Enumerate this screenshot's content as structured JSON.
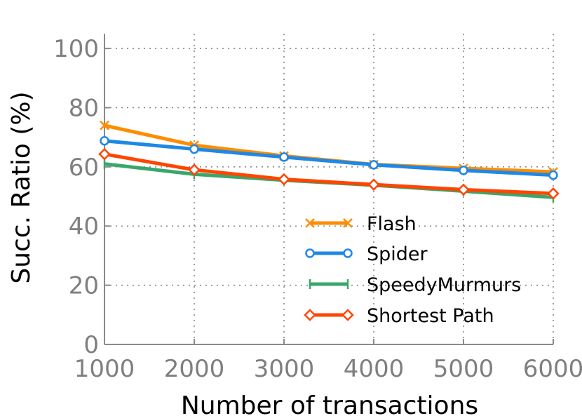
{
  "chart_data": {
    "type": "line",
    "xlabel": "Number of transactions",
    "ylabel": "Succ. Ratio (%)",
    "x": [
      1000,
      2000,
      3000,
      4000,
      5000,
      6000
    ],
    "xticks": [
      "1000",
      "2000",
      "3000",
      "4000",
      "5000",
      "6000"
    ],
    "yticks": [
      "0",
      "20",
      "40",
      "60",
      "80",
      "100"
    ],
    "xlim": [
      1000,
      6000
    ],
    "ylim": [
      0,
      105
    ],
    "grid": true,
    "legend_position": "lower-right",
    "series": [
      {
        "name": "Flash",
        "color": "#ff8c00",
        "marker": "x",
        "values": [
          74,
          67.3,
          63.7,
          60.8,
          59.5,
          58.3
        ]
      },
      {
        "name": "Spider",
        "color": "#1e88e5",
        "marker": "circle",
        "values": [
          68.8,
          66,
          63.3,
          60.7,
          58.8,
          57.2
        ]
      },
      {
        "name": "SpeedyMurmurs",
        "color": "#3aa66a",
        "marker": "vline",
        "values": [
          61,
          57.5,
          55.5,
          53.8,
          51.8,
          49.7
        ]
      },
      {
        "name": "Shortest Path",
        "color": "#ff4500",
        "marker": "diamond",
        "values": [
          64.3,
          59,
          55.8,
          54,
          52.3,
          51
        ]
      }
    ]
  }
}
